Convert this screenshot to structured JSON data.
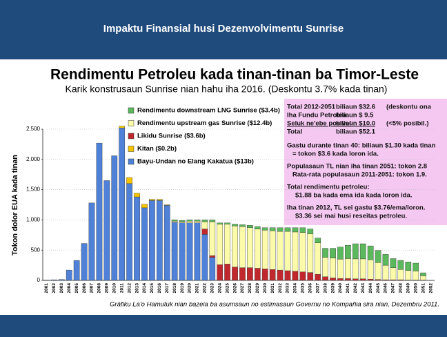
{
  "header": {
    "title": "Impaktu Finansial husi Dezenvolvimentu Sunrise"
  },
  "chart_data": {
    "type": "stacked_bar",
    "title": "Rendimentu Petroleu kada tinan-tinan ba Timor-Leste",
    "subtitle": "Karik konstrusaun Sunrise nian hahu iha 2016.   (Deskontu 3.7% kada tinan)",
    "y_label": "Tokon dolor EUA kada tinan",
    "categories": [
      "2001",
      "2002",
      "2003",
      "2004",
      "2005",
      "2006",
      "2007",
      "2008",
      "2009",
      "2010",
      "2011",
      "2012",
      "2013",
      "2014",
      "2015",
      "2016",
      "2017",
      "2018",
      "2019",
      "2020",
      "2021",
      "2022",
      "2023",
      "2024",
      "2025",
      "2026",
      "2027",
      "2028",
      "2029",
      "2030",
      "2031",
      "2032",
      "2033",
      "2034",
      "2035",
      "2036",
      "2037",
      "2038",
      "2039",
      "2040",
      "2041",
      "2042",
      "2043",
      "2044",
      "2045",
      "2046",
      "2047",
      "2048",
      "2049",
      "2050",
      "2051",
      "2052"
    ],
    "series": [
      {
        "name": "Bayu-Undan no Elang Kakatua ($13b)",
        "color": "#4f81d8",
        "values": [
          5,
          10,
          15,
          170,
          330,
          610,
          1280,
          2270,
          1650,
          2060,
          2520,
          1600,
          1380,
          1200,
          1320,
          1320,
          1240,
          960,
          950,
          950,
          950,
          760,
          380,
          0,
          0,
          0,
          0,
          0,
          0,
          0,
          0,
          0,
          0,
          0,
          0,
          0,
          0,
          0,
          0,
          0,
          0,
          0,
          0,
          0,
          0,
          0,
          0,
          0,
          0,
          0,
          0,
          0
        ]
      },
      {
        "name": "Kitan ($0.2b)",
        "color": "#f5c400",
        "values": [
          0,
          0,
          0,
          0,
          0,
          0,
          0,
          0,
          0,
          0,
          30,
          100,
          60,
          60,
          20,
          20,
          10,
          0,
          0,
          0,
          0,
          0,
          0,
          0,
          0,
          0,
          0,
          0,
          0,
          0,
          0,
          0,
          0,
          0,
          0,
          0,
          0,
          0,
          0,
          0,
          0,
          0,
          0,
          0,
          0,
          0,
          0,
          0,
          0,
          0,
          0,
          0
        ]
      },
      {
        "name": "Likidu Sunrise ($3.6b)",
        "color": "#c0282d",
        "values": [
          0,
          0,
          0,
          0,
          0,
          0,
          0,
          0,
          0,
          0,
          0,
          0,
          0,
          0,
          0,
          0,
          0,
          0,
          0,
          0,
          0,
          90,
          30,
          260,
          270,
          220,
          210,
          210,
          200,
          190,
          180,
          170,
          160,
          150,
          140,
          130,
          100,
          60,
          40,
          30,
          30,
          25,
          25,
          20,
          15,
          10,
          10,
          10,
          5,
          5,
          5,
          0
        ]
      },
      {
        "name": "Rendimentu upstream gas Sunrise ($12.4b)",
        "color": "#fbfbaa",
        "values": [
          0,
          0,
          0,
          0,
          0,
          0,
          0,
          0,
          0,
          0,
          0,
          0,
          0,
          0,
          0,
          0,
          0,
          20,
          20,
          30,
          30,
          120,
          560,
          670,
          660,
          680,
          680,
          660,
          650,
          640,
          640,
          640,
          650,
          650,
          650,
          640,
          520,
          320,
          330,
          320,
          330,
          330,
          330,
          320,
          280,
          240,
          200,
          170,
          160,
          150,
          70,
          0
        ]
      },
      {
        "name": "Rendimentu downstream LNG Sunrise ($3.4b)",
        "color": "#5cb85c",
        "values": [
          0,
          0,
          0,
          0,
          0,
          0,
          0,
          0,
          0,
          0,
          0,
          0,
          0,
          0,
          0,
          0,
          0,
          20,
          20,
          20,
          20,
          30,
          30,
          20,
          20,
          30,
          30,
          40,
          40,
          40,
          50,
          60,
          60,
          70,
          80,
          80,
          80,
          150,
          160,
          200,
          220,
          250,
          250,
          230,
          200,
          180,
          150,
          150,
          140,
          130,
          50,
          0
        ]
      }
    ],
    "ylim": [
      0,
      2500
    ],
    "yticks": [
      0,
      500,
      {
        "value": 1000,
        "label": "1,000"
      },
      {
        "value": 1500,
        "label": "1,500"
      },
      {
        "value": 2000,
        "label": "2,000"
      },
      {
        "value": 2500,
        "label": "2,500"
      }
    ],
    "grid": true
  },
  "info_box": {
    "rows": [
      [
        "Total 2012-2051",
        "biliaun  $32.6",
        "(deskontu ona"
      ],
      [
        "Iha Fundu Petroleu",
        "biliaun  $ 9.5"
      ],
      [
        "Seluk ne'ebe posivel",
        "biliaun  $10.0",
        "(<5% posibil.)"
      ],
      [
        "Total",
        "biliaun  $52.1"
      ]
    ],
    "notes": [
      "Gastu durante tinan 40: biliaun $1.30 kada tinan",
      "= tokon $3.6 kada loron ida.",
      "Populasaun TL nian iha tinan 2051: tokon 2.8",
      "Rata-rata populasaun 2011-2051: tokon 1.9.",
      "Total rendimentu petroleu:",
      "$1.88 ba kada ema ida kada loron ida.",
      "Iha tinan 2012, TL sei gastu $3.76/ema/loron.",
      "$3.36 sei mai husi reseitas petroleu."
    ]
  },
  "caption": "Gráfiku La'o Hamutuk nian bazeia ba asumsaun no estimasaun Governu no Kompañia sira nian, Dezembru 2011."
}
